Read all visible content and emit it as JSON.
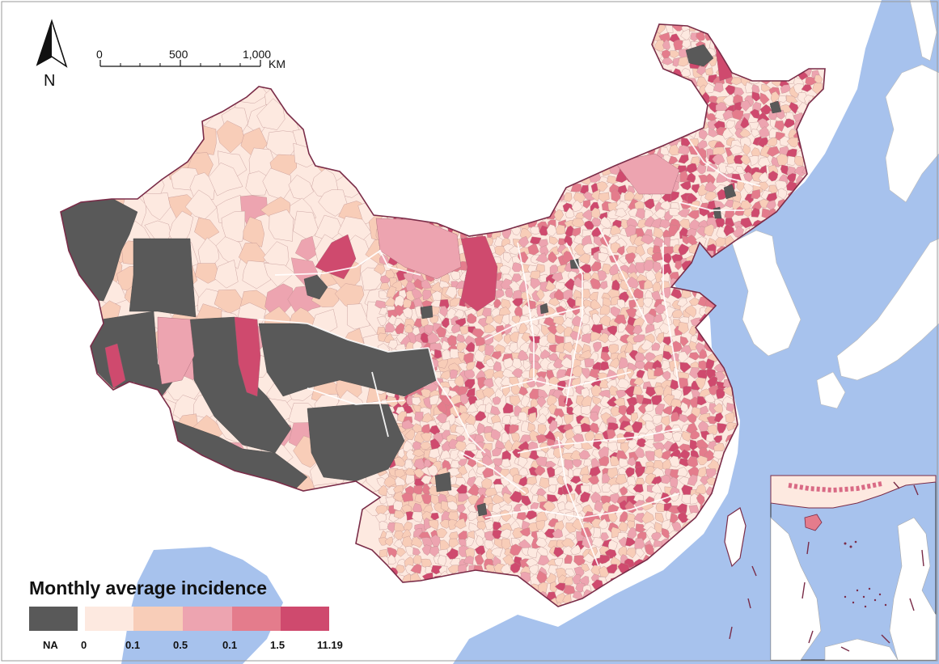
{
  "map": {
    "north_label": "N",
    "scale_bar": {
      "ticks": [
        "0",
        "500",
        "1,000"
      ],
      "unit": "KM"
    }
  },
  "legend": {
    "title": "Monthly average incidence",
    "classes": [
      {
        "label": "NA",
        "color": "#595959"
      },
      {
        "label": "0",
        "color": "#fde9e0"
      },
      {
        "label": "0.1",
        "color": "#f8cdb8"
      },
      {
        "label": "0.5",
        "color": "#eda4b0"
      },
      {
        "label": "0.1",
        "color": "#e47c8c"
      },
      {
        "label": "1.5",
        "color": "#cf4a6e"
      },
      {
        "label": "11.19",
        "color": ""
      }
    ]
  },
  "colors": {
    "sea": "#a7c2ed",
    "land": "#ffffff",
    "border": "#7a2c48",
    "na": "#595959",
    "province_line": "#ffffff"
  }
}
